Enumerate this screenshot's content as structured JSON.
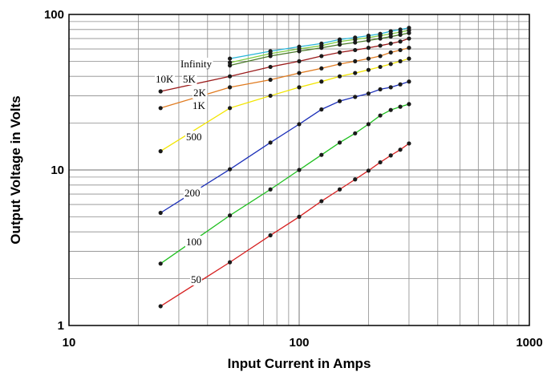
{
  "chart_data": {
    "type": "line",
    "title": "",
    "xlabel": "Input Current in Amps",
    "ylabel": "Output Voltage in Volts",
    "x_scale": "log",
    "y_scale": "log",
    "xlim": [
      10,
      1000
    ],
    "ylim": [
      1,
      100
    ],
    "x_tick_labels": [
      "10",
      "100",
      "1000"
    ],
    "y_tick_labels": [
      "1",
      "10",
      "100"
    ],
    "grid": true,
    "legend": "none",
    "x": [
      25,
      50,
      75,
      100,
      125,
      150,
      175,
      200,
      225,
      250,
      275,
      300
    ],
    "series": [
      {
        "name": "Infinity",
        "color": "#29b6d8",
        "values": [
          null,
          52,
          58,
          62,
          65,
          69,
          71,
          73,
          75,
          78,
          80,
          82
        ]
      },
      {
        "name": "10K",
        "color": "#7fcc40",
        "values": [
          null,
          49,
          56,
          60,
          63,
          67,
          69,
          71,
          73,
          75,
          77,
          79
        ]
      },
      {
        "name": "5K",
        "color": "#4a7a2a",
        "values": [
          null,
          47,
          54,
          58,
          61,
          64,
          66,
          68,
          70,
          72,
          74,
          76
        ]
      },
      {
        "name": "2K",
        "color": "#9b1c1c",
        "values": [
          32,
          40,
          46,
          50,
          54,
          57,
          59,
          61,
          63,
          65,
          67,
          70
        ]
      },
      {
        "name": "1K",
        "color": "#e07b20",
        "values": [
          25,
          34,
          38,
          42,
          45,
          48,
          50,
          52,
          54,
          57,
          59,
          61
        ]
      },
      {
        "name": "500",
        "color": "#f2e500",
        "values": [
          13.2,
          25,
          30,
          34,
          37,
          40,
          42,
          44,
          46,
          48,
          50,
          52
        ]
      },
      {
        "name": "200",
        "color": "#1b2fb8",
        "values": [
          5.3,
          10.1,
          15,
          19.7,
          24.5,
          27.7,
          29.5,
          31,
          33,
          34,
          35.5,
          37
        ]
      },
      {
        "name": "100",
        "color": "#1fbf1f",
        "values": [
          2.5,
          5.1,
          7.5,
          10,
          12.5,
          15,
          17.2,
          19.7,
          22.4,
          24.3,
          25.5,
          26.5
        ]
      },
      {
        "name": "50",
        "color": "#d62020",
        "values": [
          1.33,
          2.55,
          3.8,
          5,
          6.3,
          7.5,
          8.7,
          9.9,
          11.2,
          12.4,
          13.5,
          14.8
        ]
      }
    ]
  }
}
